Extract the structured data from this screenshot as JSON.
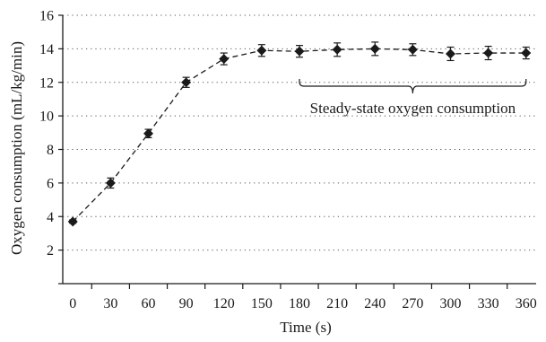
{
  "chart_data": {
    "type": "line",
    "title": "",
    "xlabel": "Time (s)",
    "ylabel": "Oxygen consumption (mL/kg/min)",
    "xlim": [
      -8,
      368
    ],
    "ylim": [
      0,
      16
    ],
    "x_ticks": [
      0,
      30,
      60,
      90,
      120,
      150,
      180,
      210,
      240,
      270,
      300,
      330,
      360
    ],
    "y_ticks": [
      2,
      4,
      6,
      8,
      10,
      12,
      14,
      16
    ],
    "grid": {
      "horizontal": true,
      "vertical": false,
      "style": "dotted"
    },
    "legend": "none",
    "series": [
      {
        "x": [
          0,
          30,
          60,
          90,
          120,
          150,
          180,
          210,
          240,
          270,
          300,
          330,
          360
        ],
        "y": [
          3.7,
          6.0,
          8.95,
          12.0,
          13.4,
          13.9,
          13.85,
          13.95,
          14.0,
          13.95,
          13.7,
          13.75,
          13.75
        ],
        "error": [
          0.1,
          0.3,
          0.25,
          0.3,
          0.35,
          0.35,
          0.35,
          0.4,
          0.4,
          0.35,
          0.4,
          0.4,
          0.35
        ],
        "line_style": "dashed",
        "marker": "diamond",
        "color": "#1a1a1a"
      }
    ],
    "annotations": [
      {
        "text": "Steady-state oxygen consumption",
        "type": "brace",
        "x_start": 180,
        "x_end": 360,
        "y": 12.2
      }
    ]
  }
}
